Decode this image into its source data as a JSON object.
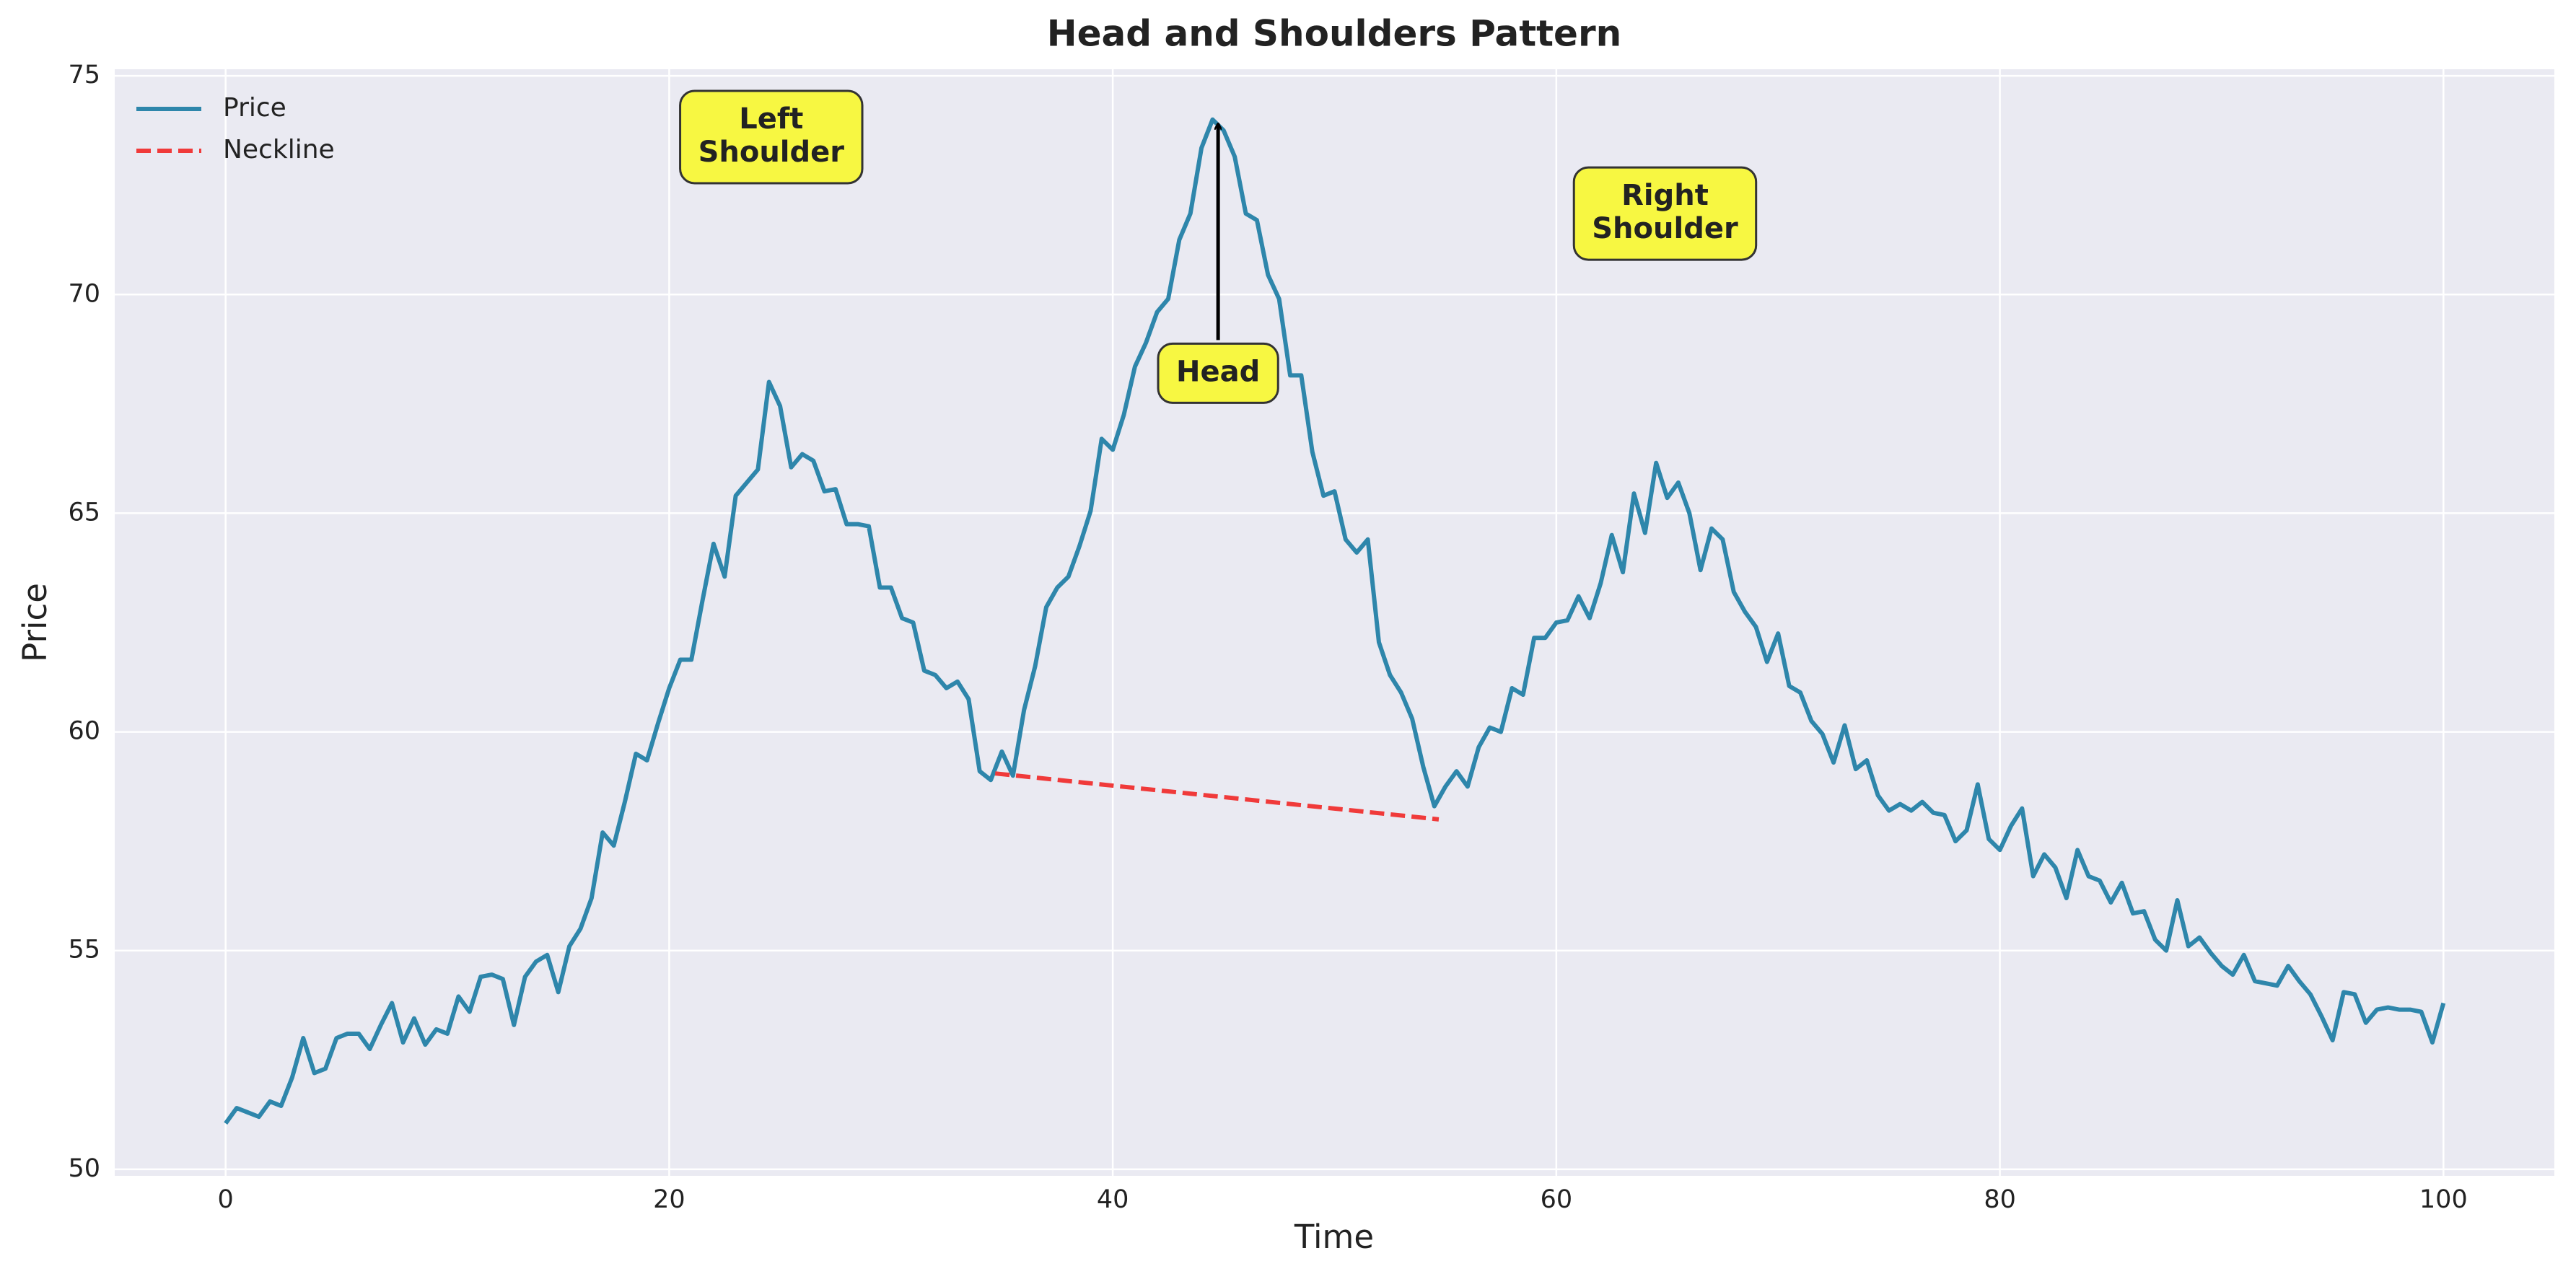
{
  "chart_data": {
    "type": "line",
    "title": "Head and Shoulders Pattern",
    "xlabel": "Time",
    "ylabel": "Price",
    "xlim": [
      -5,
      105
    ],
    "ylim": [
      49.85,
      75.15
    ],
    "xticks": [
      0,
      20,
      40,
      60,
      80,
      100
    ],
    "yticks": [
      50,
      55,
      60,
      65,
      70,
      75
    ],
    "grid": true,
    "legend": "upper left",
    "series": [
      {
        "name": "Price",
        "color": "#2e86ab",
        "style": "solid",
        "x": [
          0,
          0.5,
          1,
          1.5,
          2,
          2.5,
          3,
          3.5,
          4,
          4.5,
          5,
          5.5,
          6,
          6.5,
          7,
          7.5,
          8,
          8.5,
          9,
          9.5,
          10,
          10.5,
          11,
          11.5,
          12,
          12.5,
          13,
          13.5,
          14,
          14.5,
          15,
          15.5,
          16,
          16.5,
          17,
          17.5,
          18,
          18.5,
          19,
          19.5,
          20,
          20.5,
          21,
          21.5,
          22,
          22.5,
          23,
          23.5,
          24,
          24.5,
          25,
          25.5,
          26,
          26.5,
          27,
          27.5,
          28,
          28.5,
          29,
          29.5,
          30,
          30.5,
          31,
          31.5,
          32,
          32.5,
          33,
          33.5,
          34,
          34.5,
          35,
          35.5,
          36,
          36.5,
          37,
          37.5,
          38,
          38.5,
          39,
          39.5,
          40,
          40.5,
          41,
          41.5,
          42,
          42.5,
          43,
          43.5,
          44,
          44.5,
          45,
          45.5,
          46,
          46.5,
          47,
          47.5,
          48,
          48.5,
          49,
          49.5,
          50,
          50.5,
          51,
          51.5,
          52,
          52.5,
          53,
          53.5,
          54,
          54.5,
          55,
          55.5,
          56,
          56.5,
          57,
          57.5,
          58,
          58.5,
          59,
          59.5,
          60,
          60.5,
          61,
          61.5,
          62,
          62.5,
          63,
          63.5,
          64,
          64.5,
          65,
          65.5,
          66,
          66.5,
          67,
          67.5,
          68,
          68.5,
          69,
          69.5,
          70,
          70.5,
          71,
          71.5,
          72,
          72.5,
          73,
          73.5,
          74,
          74.5,
          75,
          75.5,
          76,
          76.5,
          77,
          77.5,
          78,
          78.5,
          79,
          79.5,
          80,
          80.5,
          81,
          81.5,
          82,
          82.5,
          83,
          83.5,
          84,
          84.5,
          85,
          85.5,
          86,
          86.5,
          87,
          87.5,
          88,
          88.5,
          89,
          89.5,
          90,
          90.5,
          91,
          91.5,
          92,
          92.5,
          93,
          93.5,
          94,
          94.5,
          95,
          95.5,
          96,
          96.5,
          97,
          97.5,
          98,
          98.5,
          99,
          99.5,
          100
        ],
        "values": [
          51.05,
          51.4,
          51.3,
          51.2,
          51.55,
          51.45,
          52.1,
          53.0,
          52.2,
          52.3,
          53.0,
          53.1,
          53.1,
          52.75,
          53.3,
          53.8,
          52.9,
          53.45,
          52.85,
          53.2,
          53.1,
          53.95,
          53.6,
          54.4,
          54.45,
          54.35,
          53.3,
          54.4,
          54.75,
          54.9,
          54.05,
          55.1,
          55.5,
          56.2,
          57.7,
          57.4,
          58.4,
          59.5,
          59.35,
          60.2,
          61.0,
          61.65,
          61.65,
          63.0,
          64.3,
          63.55,
          65.4,
          65.7,
          66.0,
          68.0,
          67.45,
          66.05,
          66.35,
          66.2,
          65.5,
          65.55,
          64.75,
          64.75,
          64.7,
          63.3,
          63.3,
          62.6,
          62.5,
          61.4,
          61.3,
          61.0,
          61.15,
          60.75,
          59.1,
          58.9,
          59.55,
          59.0,
          60.5,
          61.5,
          62.85,
          63.3,
          63.55,
          64.25,
          65.05,
          66.7,
          66.45,
          67.25,
          68.35,
          68.9,
          69.6,
          69.9,
          71.25,
          71.85,
          73.35,
          74.0,
          73.75,
          73.15,
          71.85,
          71.7,
          70.45,
          69.9,
          68.15,
          68.15,
          66.4,
          65.4,
          65.5,
          64.4,
          64.1,
          64.4,
          62.05,
          61.3,
          60.9,
          60.3,
          59.2,
          58.3,
          58.75,
          59.1,
          58.75,
          59.65,
          60.1,
          60.0,
          61.0,
          60.85,
          62.15,
          62.15,
          62.5,
          62.55,
          63.1,
          62.6,
          63.4,
          64.5,
          63.65,
          65.45,
          64.55,
          66.15,
          65.35,
          65.7,
          65.0,
          63.7,
          64.65,
          64.4,
          63.2,
          62.75,
          62.4,
          61.6,
          62.25,
          61.05,
          60.9,
          60.25,
          59.95,
          59.3,
          60.15,
          59.15,
          59.35,
          58.55,
          58.2,
          58.35,
          58.2,
          58.4,
          58.15,
          58.1,
          57.5,
          57.75,
          58.8,
          57.55,
          57.3,
          57.85,
          58.25,
          56.7,
          57.2,
          56.9,
          56.2,
          57.3,
          56.7,
          56.6,
          56.1,
          56.55,
          55.85,
          55.9,
          55.25,
          55.0,
          56.15,
          55.1,
          55.3,
          54.95,
          54.65,
          54.45,
          54.9,
          54.3,
          54.25,
          54.2,
          54.65,
          54.3,
          54.0,
          53.5,
          52.95,
          54.05,
          54.0,
          53.35,
          53.65,
          53.7,
          53.65,
          53.65,
          53.6,
          52.9,
          53.8
        ]
      },
      {
        "name": "Neckline",
        "color": "#f03a3a",
        "style": "dashed",
        "x": [
          34.7,
          54.7
        ],
        "values": [
          59.05,
          58.0
        ]
      }
    ],
    "annotations": [
      {
        "lines": [
          "Left",
          "Shoulder"
        ],
        "x": 24.6,
        "y": 73.6
      },
      {
        "lines": [
          "Head"
        ],
        "x": 44.75,
        "y": 68.2,
        "arrow_to": [
          44.75,
          73.9
        ]
      },
      {
        "lines": [
          "Right",
          "Shoulder"
        ],
        "x": 64.9,
        "y": 71.85
      }
    ]
  }
}
